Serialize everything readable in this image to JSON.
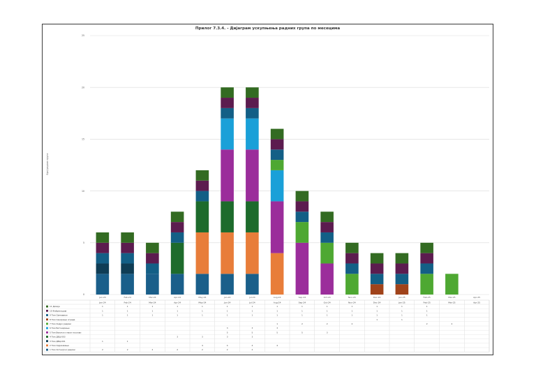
{
  "chart_data": {
    "type": "bar",
    "stacked": true,
    "title": "Прилог 7.3.4. - Дијаграм ускупњења радних група по месецима",
    "xlabel": "",
    "ylabel": "Број радних група",
    "ylim": [
      0,
      25
    ],
    "yticks": [
      0,
      5,
      10,
      15,
      20,
      25
    ],
    "grid": true,
    "legend_position": "bottom (data table rows)",
    "categories": [
      "Jan-24",
      "Feb-24",
      "Mar-24",
      "Apr-24",
      "May-24",
      "Jun-24",
      "Jul-24",
      "Aug-24",
      "Sep-24",
      "Oct-24",
      "Nov-24",
      "Dec-24",
      "Jan-25",
      "Feb-25",
      "Mar-25",
      "Apr-25"
    ],
    "series": [
      {
        "name": "1 Тим Хитнијски радови",
        "color": "#1a5f8a",
        "values": [
          2,
          2,
          2,
          2,
          2,
          2,
          2,
          0,
          0,
          0,
          0,
          0,
          0,
          0,
          0,
          0
        ]
      },
      {
        "name": "2 Тим Одржавање",
        "color": "#e87d3a",
        "values": [
          0,
          0,
          0,
          0,
          4,
          4,
          4,
          4,
          0,
          0,
          0,
          0,
          0,
          0,
          0,
          0
        ]
      },
      {
        "name": "3 Тим ДБЦ-001",
        "color": "#0f3d55",
        "values": [
          1,
          1,
          0,
          0,
          0,
          0,
          0,
          0,
          0,
          0,
          0,
          0,
          0,
          0,
          0,
          0
        ]
      },
      {
        "name": "4 Тим ДБЦ-003",
        "color": "#1d6b2c",
        "values": [
          0,
          0,
          0,
          3,
          3,
          3,
          3,
          0,
          0,
          0,
          0,
          0,
          0,
          0,
          0,
          0
        ]
      },
      {
        "name": "5 Тим Велики и мали послови",
        "color": "#9b2d9b",
        "values": [
          0,
          0,
          0,
          0,
          0,
          5,
          5,
          5,
          5,
          3,
          0,
          0,
          0,
          0,
          0,
          0
        ]
      },
      {
        "name": "6 Тим Бетонирање",
        "color": "#1aa0d8",
        "values": [
          0,
          0,
          0,
          0,
          0,
          3,
          3,
          3,
          0,
          0,
          0,
          0,
          0,
          0,
          0,
          0
        ]
      },
      {
        "name": "7 Тим Хидро радови",
        "color": "#4ea832",
        "values": [
          0,
          0,
          0,
          0,
          0,
          0,
          0,
          1,
          2,
          2,
          2,
          0,
          0,
          2,
          2,
          0
        ]
      },
      {
        "name": "8 Тим Санирање зграда",
        "color": "#a0431a",
        "values": [
          0,
          0,
          0,
          0,
          0,
          0,
          0,
          0,
          0,
          0,
          0,
          1,
          1,
          0,
          0,
          0
        ]
      },
      {
        "name": "9 Тим Ојачавање",
        "color": "#135f86",
        "values": [
          1,
          1,
          1,
          1,
          1,
          1,
          1,
          1,
          1,
          1,
          1,
          1,
          1,
          1,
          0,
          0
        ]
      },
      {
        "name": "10 Фабрикација",
        "color": "#5c1c4f",
        "values": [
          1,
          1,
          1,
          1,
          1,
          1,
          1,
          1,
          1,
          1,
          1,
          1,
          1,
          1,
          0,
          0
        ]
      },
      {
        "name": "11 Дизајн",
        "color": "#336b22",
        "values": [
          1,
          1,
          1,
          1,
          1,
          1,
          1,
          1,
          1,
          1,
          1,
          1,
          1,
          1,
          0,
          0
        ]
      }
    ]
  }
}
